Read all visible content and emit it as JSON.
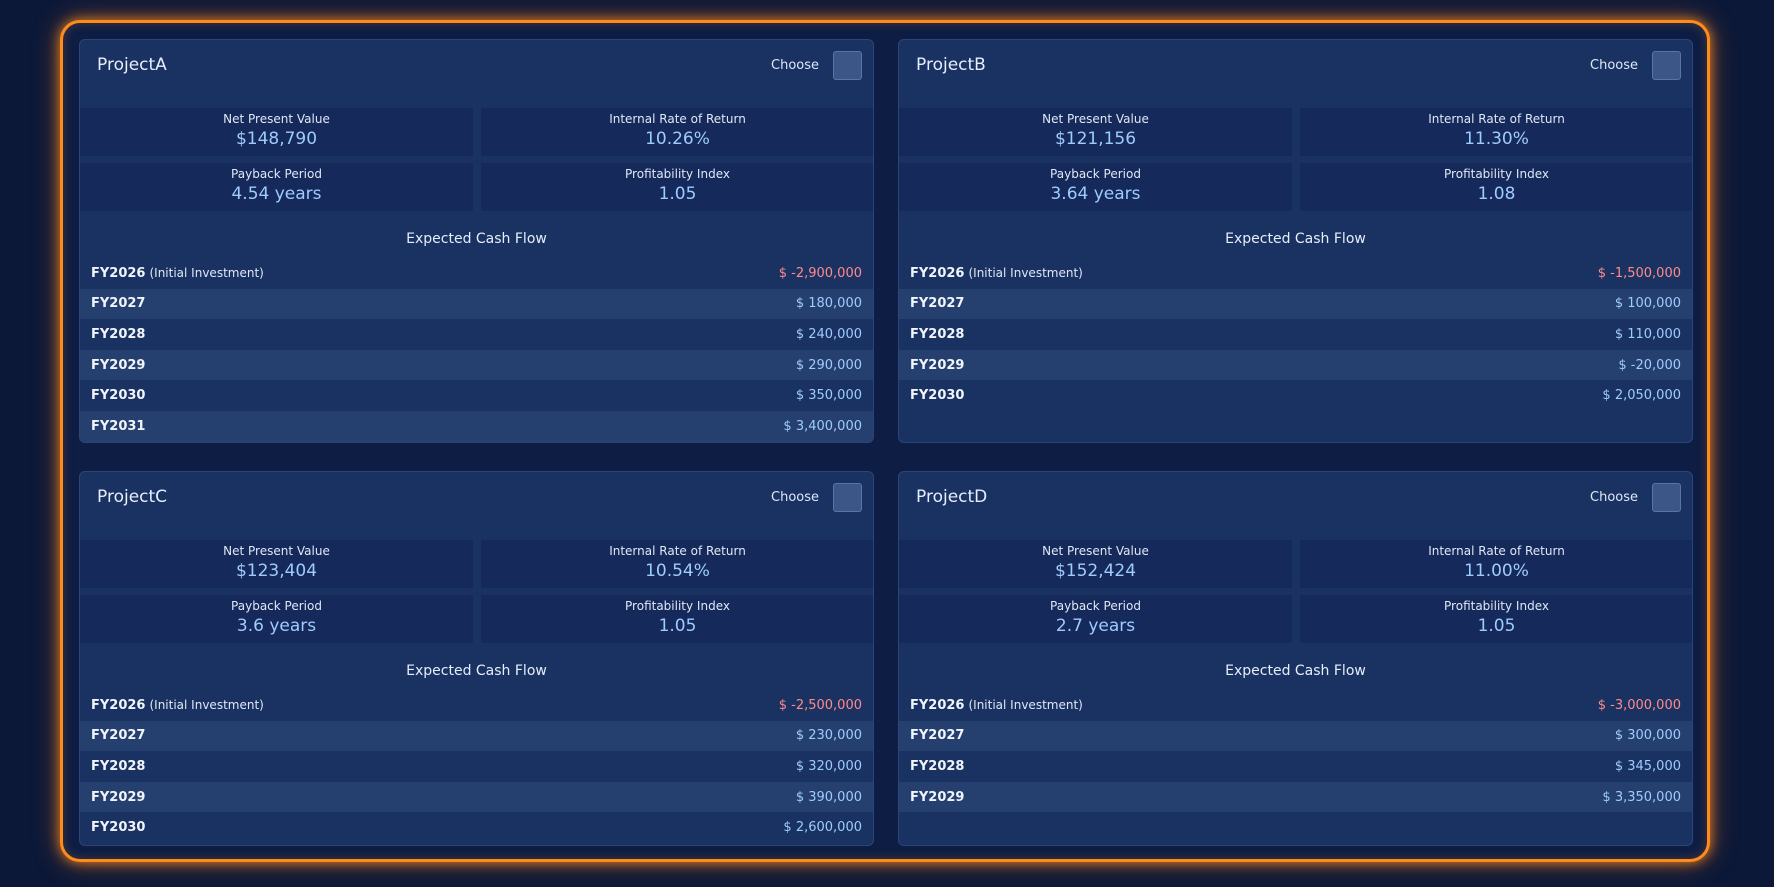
{
  "choose_label": "Choose",
  "metric_labels": {
    "npv": "Net Present Value",
    "irr": "Internal Rate of Return",
    "payback": "Payback Period",
    "pi": "Profitability Index"
  },
  "cash_flow_title": "Expected Cash Flow",
  "initial_note": "(Initial Investment)",
  "colors": {
    "frame": "#ff8c1a",
    "value": "#9fcbff",
    "negative": "#ff8a8a"
  },
  "projects": [
    {
      "name": "ProjectA",
      "npv": "$148,790",
      "irr": "10.26%",
      "payback": "4.54 years",
      "pi": "1.05",
      "cash_flows": [
        {
          "year": "FY2026",
          "amount": "$ -2,900,000"
        },
        {
          "year": "FY2027",
          "amount": "$ 180,000"
        },
        {
          "year": "FY2028",
          "amount": "$ 240,000"
        },
        {
          "year": "FY2029",
          "amount": "$ 290,000"
        },
        {
          "year": "FY2030",
          "amount": "$ 350,000"
        },
        {
          "year": "FY2031",
          "amount": "$ 3,400,000"
        }
      ]
    },
    {
      "name": "ProjectB",
      "npv": "$121,156",
      "irr": "11.30%",
      "payback": "3.64 years",
      "pi": "1.08",
      "cash_flows": [
        {
          "year": "FY2026",
          "amount": "$ -1,500,000"
        },
        {
          "year": "FY2027",
          "amount": "$ 100,000"
        },
        {
          "year": "FY2028",
          "amount": "$ 110,000"
        },
        {
          "year": "FY2029",
          "amount": "$ -20,000"
        },
        {
          "year": "FY2030",
          "amount": "$ 2,050,000"
        }
      ]
    },
    {
      "name": "ProjectC",
      "npv": "$123,404",
      "irr": "10.54%",
      "payback": "3.6 years",
      "pi": "1.05",
      "cash_flows": [
        {
          "year": "FY2026",
          "amount": "$ -2,500,000"
        },
        {
          "year": "FY2027",
          "amount": "$ 230,000"
        },
        {
          "year": "FY2028",
          "amount": "$ 320,000"
        },
        {
          "year": "FY2029",
          "amount": "$ 390,000"
        },
        {
          "year": "FY2030",
          "amount": "$ 2,600,000"
        }
      ]
    },
    {
      "name": "ProjectD",
      "npv": "$152,424",
      "irr": "11.00%",
      "payback": "2.7 years",
      "pi": "1.05",
      "cash_flows": [
        {
          "year": "FY2026",
          "amount": "$ -3,000,000"
        },
        {
          "year": "FY2027",
          "amount": "$ 300,000"
        },
        {
          "year": "FY2028",
          "amount": "$ 345,000"
        },
        {
          "year": "FY2029",
          "amount": "$ 3,350,000"
        }
      ]
    }
  ]
}
